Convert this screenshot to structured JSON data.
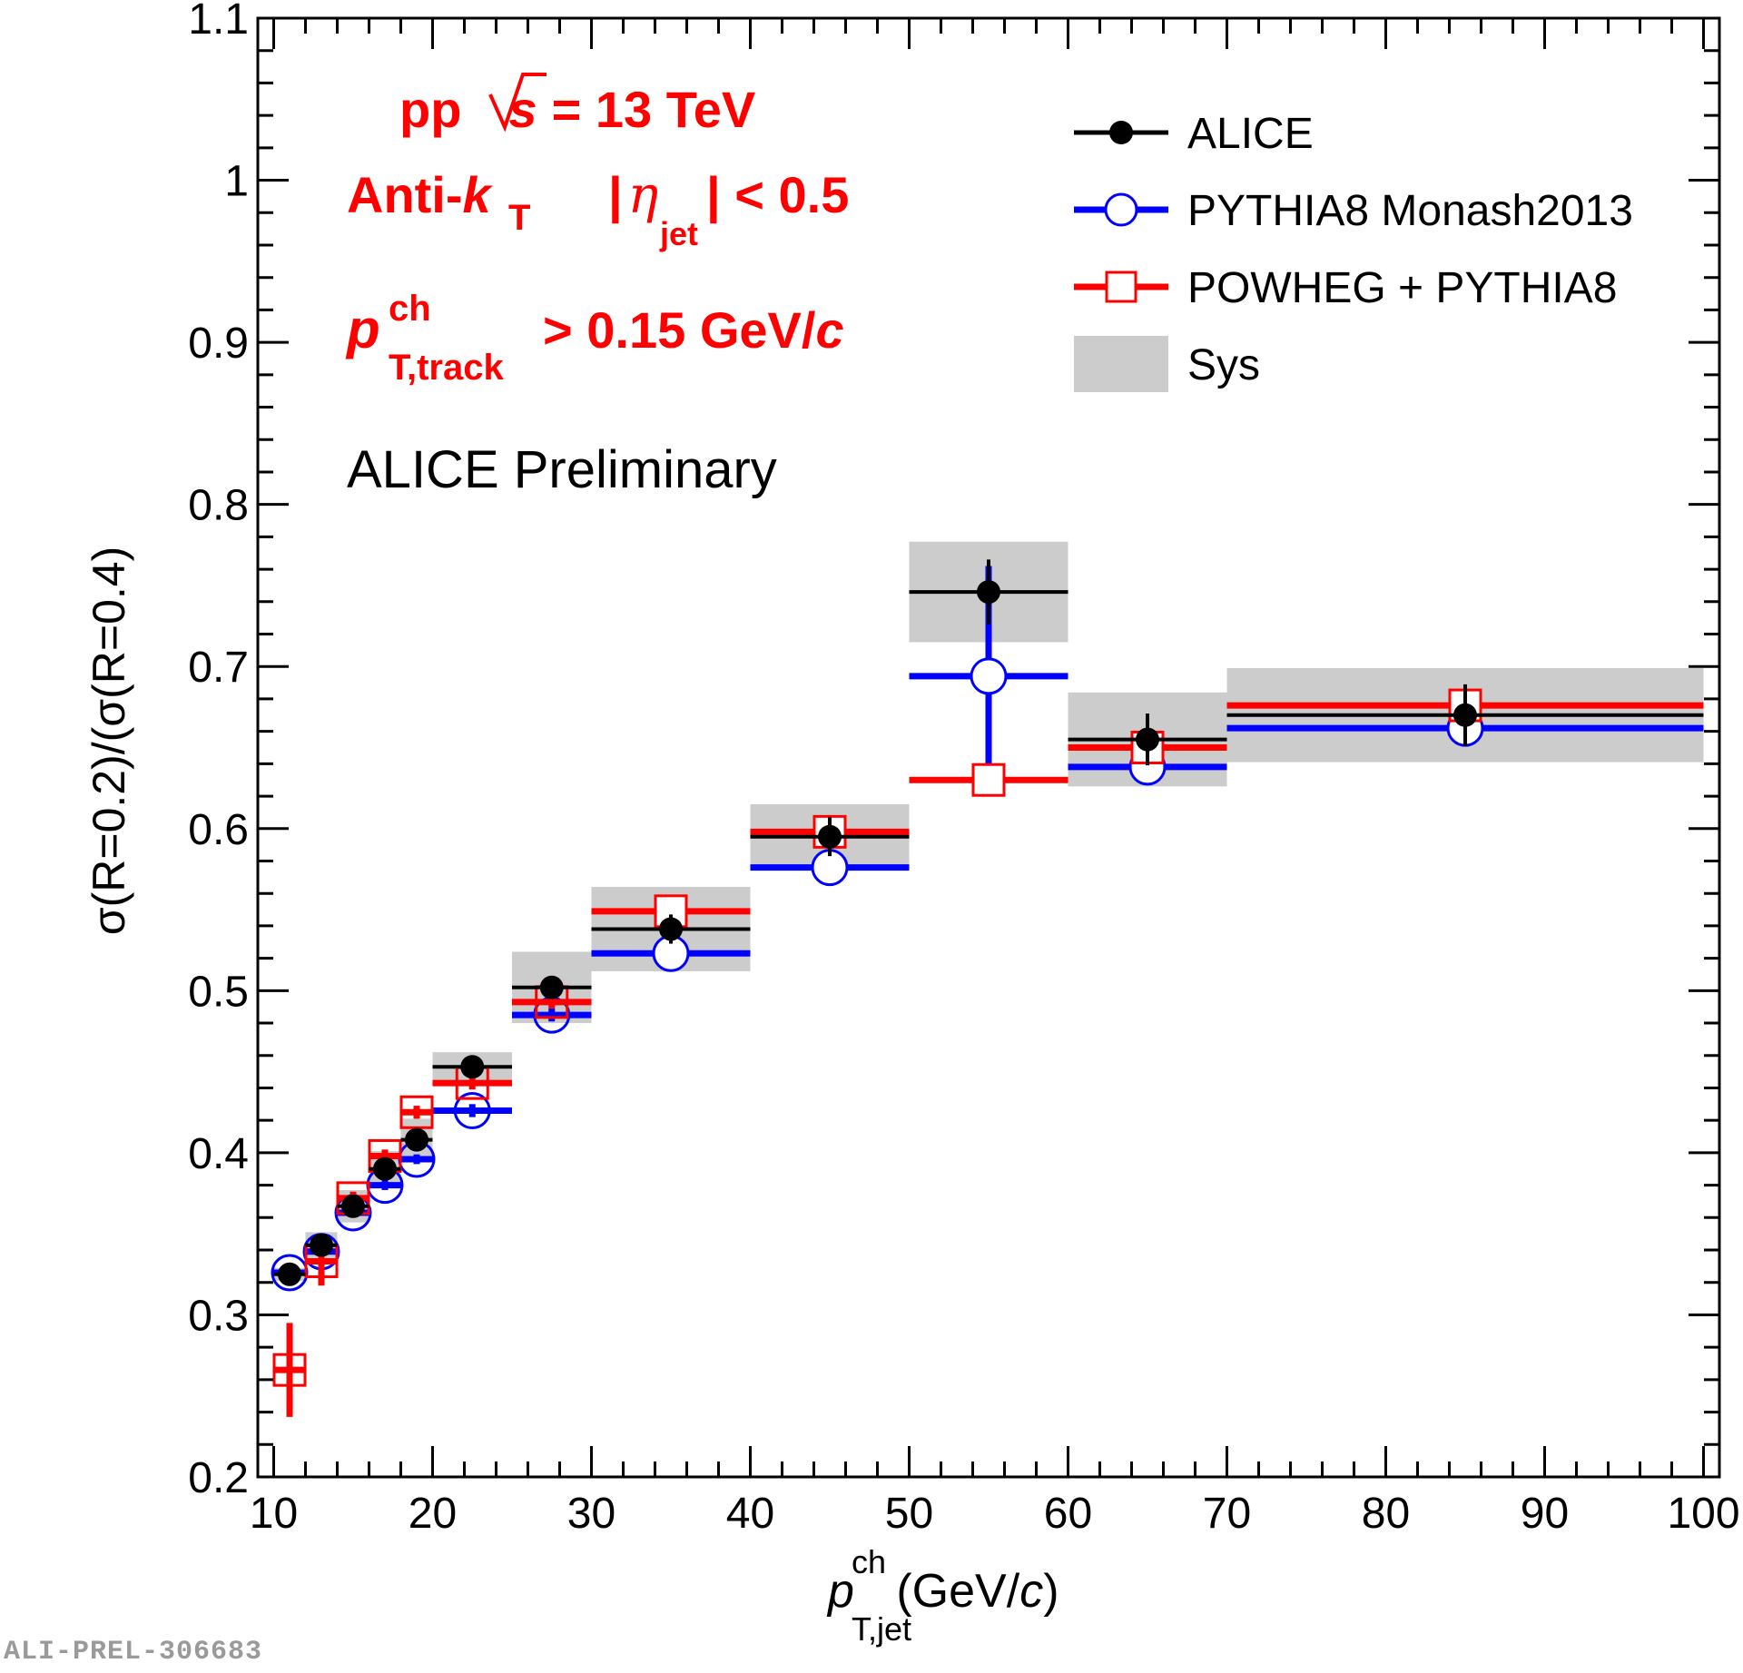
{
  "chart_data": {
    "type": "scatter",
    "xlabel": {
      "main": "p",
      "sup": "ch",
      "sub": "T,jet",
      "unit_open": " (GeV/",
      "unit_c": "c",
      "unit_close": ")"
    },
    "ylabel": "σ(R=0.2)/(σ(R=0.4)",
    "xlim": [
      9,
      101
    ],
    "ylim": [
      0.2,
      1.1
    ],
    "x_ticks": [
      10,
      20,
      30,
      40,
      50,
      60,
      70,
      80,
      90,
      100
    ],
    "y_ticks": [
      0.2,
      0.3,
      0.4,
      0.5,
      0.6,
      0.7,
      0.8,
      0.9,
      1,
      1.1
    ],
    "x_tick_labels": [
      "10",
      "20",
      "30",
      "40",
      "50",
      "60",
      "70",
      "80",
      "90",
      "100"
    ],
    "y_tick_labels": [
      "0.2",
      "0.3",
      "0.4",
      "0.5",
      "0.6",
      "0.7",
      "0.8",
      "0.9",
      "1",
      "1.1"
    ],
    "bins": [
      [
        10,
        12
      ],
      [
        12,
        14
      ],
      [
        14,
        16
      ],
      [
        16,
        18
      ],
      [
        18,
        20
      ],
      [
        20,
        25
      ],
      [
        25,
        30
      ],
      [
        30,
        40
      ],
      [
        40,
        50
      ],
      [
        50,
        60
      ],
      [
        60,
        70
      ],
      [
        70,
        100
      ]
    ],
    "series": [
      {
        "name": "ALICE",
        "color": "#000000",
        "marker": "filled-circle",
        "x": [
          11,
          13,
          15,
          17,
          19,
          22.5,
          27.5,
          35,
          45,
          55,
          65,
          85
        ],
        "values": [
          0.325,
          0.343,
          0.367,
          0.39,
          0.408,
          0.453,
          0.502,
          0.538,
          0.595,
          0.746,
          0.655,
          0.67
        ],
        "stat_err": [
          0.002,
          0.003,
          0.003,
          0.004,
          0.004,
          0.005,
          0.006,
          0.009,
          0.012,
          0.02,
          0.016,
          0.019
        ],
        "sys_err": [
          0.004,
          0.008,
          0.01,
          0.011,
          0.013,
          0.009,
          0.022,
          0.026,
          0.02,
          0.031,
          0.029,
          0.029
        ]
      },
      {
        "name": "PYTHIA8 Monash2013",
        "color": "#0000ff",
        "marker": "open-circle",
        "x": [
          11,
          13,
          15,
          17,
          19,
          22.5,
          27.5,
          35,
          45,
          55,
          65,
          85
        ],
        "values": [
          0.326,
          0.339,
          0.363,
          0.38,
          0.396,
          0.426,
          0.485,
          0.523,
          0.576,
          0.694,
          0.638,
          0.662
        ],
        "stat_err": [
          0.002,
          0.002,
          0.003,
          0.003,
          0.003,
          0.004,
          0.004,
          0.004,
          0.005,
          0.068,
          0.004,
          0.004
        ]
      },
      {
        "name": "POWHEG + PYTHIA8",
        "color": "#ff0000",
        "marker": "open-square",
        "x": [
          11,
          13,
          15,
          17,
          19,
          22.5,
          27.5,
          35,
          45,
          55,
          65,
          85
        ],
        "values": [
          0.266,
          0.333,
          0.372,
          0.398,
          0.425,
          0.443,
          0.493,
          0.549,
          0.598,
          0.63,
          0.65,
          0.676
        ],
        "stat_err": [
          0.029,
          0.015,
          0.004,
          0.004,
          0.004,
          0.004,
          0.004,
          0.004,
          0.004,
          0.004,
          0.004,
          0.004
        ]
      }
    ],
    "legend": {
      "position": "top-right",
      "entries": [
        {
          "label": "ALICE",
          "type": "filled-circle",
          "color": "#000000"
        },
        {
          "label": "PYTHIA8 Monash2013",
          "type": "open-circle",
          "color": "#0000ff"
        },
        {
          "label": "POWHEG + PYTHIA8",
          "type": "open-square",
          "color": "#ff0000"
        },
        {
          "label": "Sys",
          "type": "box",
          "color": "#cccccc"
        }
      ]
    },
    "annotations": {
      "line1_pp": "pp",
      "line1_rest": "= 13 TeV",
      "line1_s": "s",
      "line2_anti": "Anti-",
      "line2_k": "k",
      "line2_T": "T",
      "line2_eta_pre": "|",
      "line2_eta": "η",
      "line2_eta_sub": "jet",
      "line2_eta_post": "| < 0.5",
      "line3_p": "p",
      "line3_sup": "ch",
      "line3_sub": "T,track",
      "line3_rest": "> 0.15 GeV/",
      "line3_c": "c",
      "preliminary": "ALICE Preliminary"
    },
    "sys_color": "#cccccc"
  },
  "footer": "ALI-PREL-306683"
}
